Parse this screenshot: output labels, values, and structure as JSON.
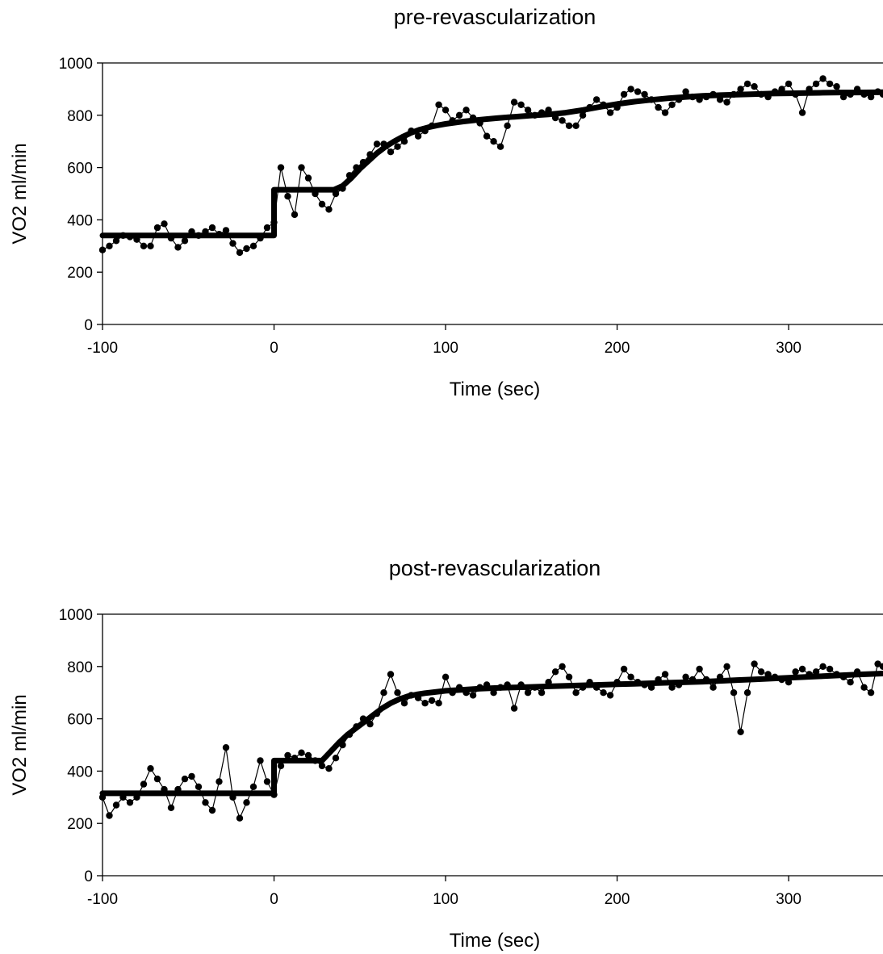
{
  "chart_data": [
    {
      "type": "scatter",
      "title": "pre-revascularization",
      "xlabel": "Time (sec)",
      "ylabel": "VO2 ml/min",
      "xlim": [
        -100,
        355
      ],
      "ylim": [
        0,
        1000
      ],
      "x_ticks": [
        "-100",
        "0",
        "100",
        "200",
        "300"
      ],
      "y_ticks": [
        "0",
        "200",
        "400",
        "600",
        "800",
        "1000"
      ],
      "grid": false,
      "legend": "none",
      "colors": {
        "points": "#000000",
        "fit": "#000000"
      },
      "series": [
        {
          "kind": "measured",
          "x": [
            -100,
            -96,
            -92,
            -88,
            -84,
            -80,
            -76,
            -72,
            -68,
            -64,
            -60,
            -56,
            -52,
            -48,
            -44,
            -40,
            -36,
            -32,
            -28,
            -24,
            -20,
            -16,
            -12,
            -8,
            -4,
            0,
            4,
            8,
            12,
            16,
            20,
            24,
            28,
            32,
            36,
            40,
            44,
            48,
            52,
            56,
            60,
            64,
            68,
            72,
            76,
            80,
            84,
            88,
            92,
            96,
            100,
            104,
            108,
            112,
            116,
            120,
            124,
            128,
            132,
            136,
            140,
            144,
            148,
            152,
            156,
            160,
            164,
            168,
            172,
            176,
            180,
            184,
            188,
            192,
            196,
            200,
            204,
            208,
            212,
            216,
            220,
            224,
            228,
            232,
            236,
            240,
            244,
            248,
            252,
            256,
            260,
            264,
            268,
            272,
            276,
            280,
            284,
            288,
            292,
            296,
            300,
            304,
            308,
            312,
            316,
            320,
            324,
            328,
            332,
            336,
            340,
            344,
            348,
            352,
            355
          ],
          "y": [
            285,
            300,
            320,
            340,
            335,
            325,
            300,
            300,
            370,
            385,
            330,
            295,
            320,
            355,
            340,
            355,
            370,
            345,
            360,
            310,
            275,
            290,
            300,
            330,
            370,
            390,
            600,
            490,
            420,
            600,
            560,
            500,
            460,
            440,
            500,
            520,
            570,
            600,
            620,
            650,
            690,
            690,
            660,
            680,
            700,
            740,
            720,
            740,
            760,
            840,
            820,
            780,
            800,
            820,
            790,
            770,
            720,
            700,
            680,
            760,
            850,
            840,
            820,
            800,
            810,
            820,
            790,
            780,
            760,
            760,
            800,
            830,
            860,
            840,
            810,
            830,
            880,
            900,
            890,
            880,
            860,
            830,
            810,
            840,
            860,
            890,
            870,
            860,
            870,
            880,
            860,
            850,
            880,
            900,
            920,
            910,
            880,
            870,
            890,
            900,
            920,
            880,
            810,
            900,
            920,
            940,
            920,
            910,
            870,
            880,
            900,
            880,
            870,
            890,
            880
          ]
        },
        {
          "kind": "fit",
          "x": [
            -100,
            0,
            0,
            5,
            10,
            15,
            20,
            25,
            30,
            35,
            40,
            45,
            50,
            55,
            60,
            65,
            70,
            75,
            80,
            85,
            90,
            95,
            100,
            110,
            120,
            130,
            140,
            150,
            160,
            170,
            180,
            190,
            200,
            210,
            220,
            230,
            240,
            250,
            260,
            270,
            280,
            290,
            300,
            310,
            320,
            330,
            340,
            355
          ],
          "y": [
            340,
            340,
            515,
            515,
            515,
            515,
            515,
            515,
            515,
            515,
            530,
            560,
            595,
            625,
            655,
            680,
            700,
            718,
            733,
            745,
            754,
            761,
            767,
            776,
            783,
            789,
            794,
            799,
            803,
            810,
            820,
            832,
            843,
            852,
            859,
            865,
            870,
            874,
            877,
            879,
            881,
            883,
            884,
            885,
            886,
            887,
            887,
            888
          ]
        }
      ]
    },
    {
      "type": "scatter",
      "title": "post-revascularization",
      "xlabel": "Time (sec)",
      "ylabel": "VO2 ml/min",
      "xlim": [
        -100,
        355
      ],
      "ylim": [
        0,
        1000
      ],
      "x_ticks": [
        "-100",
        "0",
        "100",
        "200",
        "300"
      ],
      "y_ticks": [
        "0",
        "200",
        "400",
        "600",
        "800",
        "1000"
      ],
      "grid": false,
      "legend": "none",
      "colors": {
        "points": "#000000",
        "fit": "#000000"
      },
      "series": [
        {
          "kind": "measured",
          "x": [
            -100,
            -96,
            -92,
            -88,
            -84,
            -80,
            -76,
            -72,
            -68,
            -64,
            -60,
            -56,
            -52,
            -48,
            -44,
            -40,
            -36,
            -32,
            -28,
            -24,
            -20,
            -16,
            -12,
            -8,
            -4,
            0,
            4,
            8,
            12,
            16,
            20,
            24,
            28,
            32,
            36,
            40,
            44,
            48,
            52,
            56,
            60,
            64,
            68,
            72,
            76,
            80,
            84,
            88,
            92,
            96,
            100,
            104,
            108,
            112,
            116,
            120,
            124,
            128,
            132,
            136,
            140,
            144,
            148,
            152,
            156,
            160,
            164,
            168,
            172,
            176,
            180,
            184,
            188,
            192,
            196,
            200,
            204,
            208,
            212,
            216,
            220,
            224,
            228,
            232,
            236,
            240,
            244,
            248,
            252,
            256,
            260,
            264,
            268,
            272,
            276,
            280,
            284,
            288,
            292,
            296,
            300,
            304,
            308,
            312,
            316,
            320,
            324,
            328,
            332,
            336,
            340,
            344,
            348,
            352,
            355
          ],
          "y": [
            300,
            230,
            270,
            300,
            280,
            300,
            350,
            410,
            370,
            330,
            260,
            330,
            370,
            380,
            340,
            280,
            250,
            360,
            490,
            300,
            220,
            280,
            340,
            440,
            360,
            310,
            420,
            460,
            450,
            470,
            460,
            440,
            420,
            410,
            450,
            500,
            540,
            570,
            600,
            580,
            620,
            700,
            770,
            700,
            660,
            690,
            680,
            660,
            670,
            660,
            760,
            700,
            720,
            700,
            690,
            720,
            730,
            700,
            720,
            730,
            640,
            730,
            700,
            720,
            700,
            740,
            780,
            800,
            760,
            700,
            720,
            740,
            720,
            700,
            690,
            740,
            790,
            760,
            740,
            730,
            720,
            750,
            770,
            720,
            730,
            760,
            750,
            790,
            750,
            720,
            760,
            800,
            700,
            550,
            700,
            810,
            780,
            770,
            760,
            750,
            740,
            780,
            790,
            770,
            780,
            800,
            790,
            770,
            760,
            740,
            780,
            720,
            700,
            810,
            800
          ]
        },
        {
          "kind": "fit",
          "x": [
            -100,
            0,
            0,
            5,
            10,
            15,
            20,
            25,
            28,
            33,
            38,
            43,
            48,
            53,
            58,
            63,
            68,
            73,
            78,
            83,
            88,
            93,
            100,
            110,
            120,
            130,
            140,
            150,
            160,
            170,
            180,
            190,
            200,
            210,
            220,
            230,
            240,
            250,
            260,
            270,
            280,
            290,
            300,
            310,
            320,
            330,
            340,
            355
          ],
          "y": [
            315,
            315,
            440,
            440,
            440,
            440,
            440,
            440,
            440,
            475,
            510,
            540,
            565,
            590,
            615,
            640,
            660,
            675,
            686,
            693,
            698,
            702,
            707,
            711,
            715,
            718,
            720,
            722,
            724,
            726,
            728,
            730,
            732,
            734,
            736,
            738,
            740,
            742,
            745,
            748,
            751,
            754,
            757,
            760,
            763,
            766,
            769,
            773
          ]
        }
      ]
    }
  ]
}
